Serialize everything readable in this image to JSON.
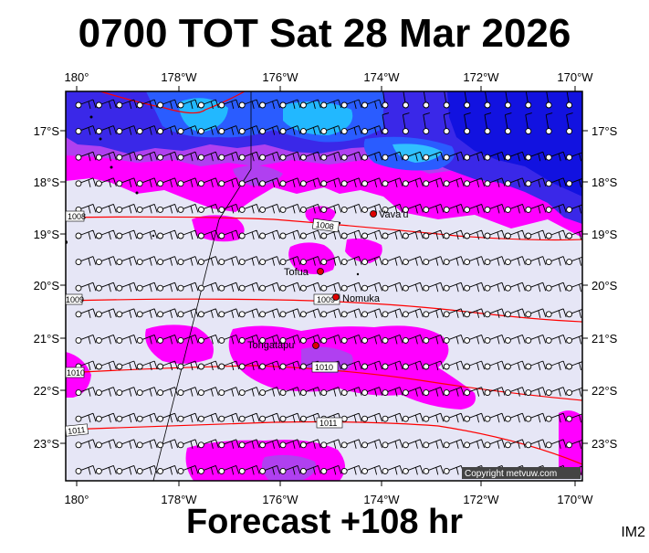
{
  "title": "0700 TOT Sat 28 Mar 2026",
  "subtitle": "Forecast +108 hr",
  "product_code": "IM2",
  "copyright": "Copyright metvuw.com",
  "lon_labels": [
    "180°",
    "178°W",
    "176°W",
    "174°W",
    "172°W",
    "170°W"
  ],
  "lat_labels": [
    "17°S",
    "18°S",
    "19°S",
    "20°S",
    "21°S",
    "22°S",
    "23°S"
  ],
  "places": [
    {
      "name": "Vava'u"
    },
    {
      "name": "Tofua"
    },
    {
      "name": "Nomuka"
    },
    {
      "name": "Tongatapu"
    }
  ],
  "isobars": [
    {
      "label": "1008"
    },
    {
      "label": "1009"
    },
    {
      "label": "1010"
    },
    {
      "label": "1011"
    }
  ],
  "colors": {
    "background": "#e6e6f6",
    "magenta": "#ff00ff",
    "violet": "#aa33ee",
    "blue_deep": "#1010e8",
    "blue_mid": "#2a5cff",
    "cyan": "#1e9bff",
    "isobar": "#ff0000",
    "place_dot": "#dd0000"
  }
}
